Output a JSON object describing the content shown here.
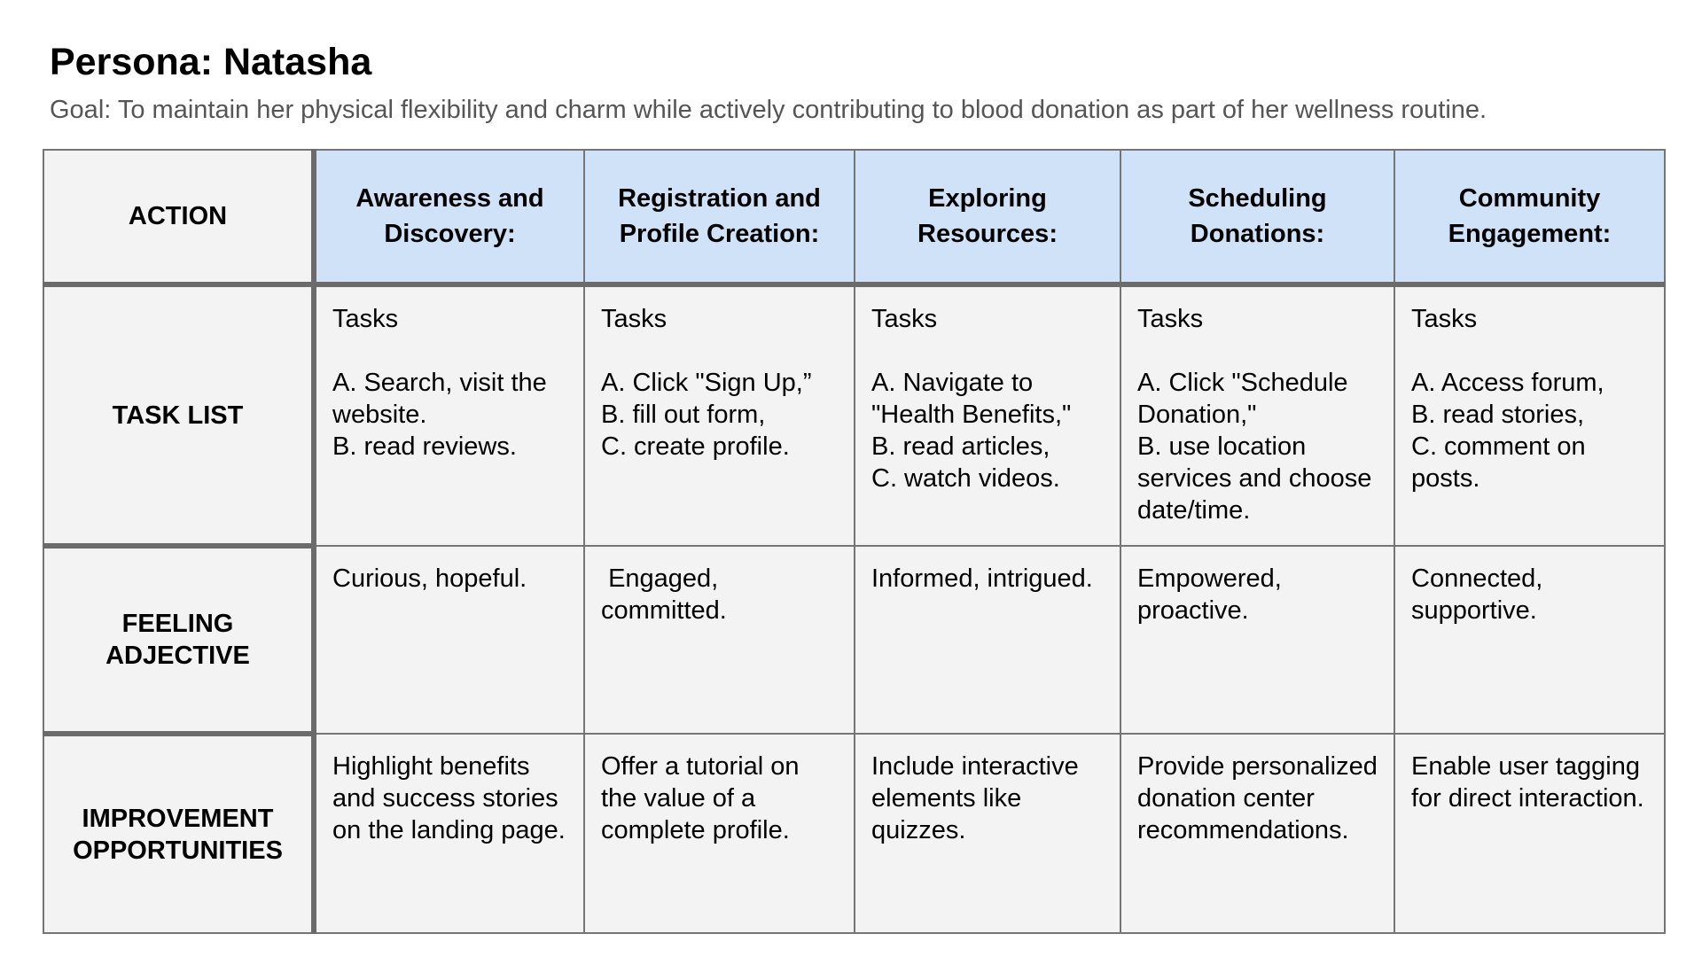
{
  "header": {
    "title": "Persona: Natasha",
    "goal": "Goal: To maintain her physical flexibility and charm while actively contributing to blood donation as part of her wellness routine."
  },
  "table": {
    "row_headers": {
      "action": "ACTION",
      "task_list": "TASK LIST",
      "feeling": "FEELING\nADJECTIVE",
      "improvement": "IMPROVEMENT\nOPPORTUNITIES"
    },
    "stages": [
      "Awareness and\nDiscovery:",
      "Registration and\nProfile Creation:",
      "Exploring\nResources:",
      "Scheduling\nDonations:",
      "Community\nEngagement:"
    ],
    "tasks": [
      "Tasks\n\nA. Search, visit the website.\nB. read reviews.",
      "Tasks\n\nA. Click \"Sign Up,”\nB.  fill out form,\nC. create profile.",
      "Tasks\n\nA. Navigate to \"Health Benefits,\"\nB. read articles,\nC. watch videos.",
      "Tasks\n\nA. Click \"Schedule Donation,\"\nB. use location services and choose date/time.",
      "Tasks\n\nA. Access forum,\nB. read stories,\nC. comment on posts."
    ],
    "feelings": [
      "Curious, hopeful.",
      " Engaged, committed.",
      "Informed, intrigued.",
      "Empowered, proactive.",
      "Connected, supportive."
    ],
    "improvements": [
      "Highlight benefits and success stories on the landing page.",
      "Offer a tutorial on the value of a complete profile.",
      "Include interactive elements like quizzes.",
      "Provide personalized donation center recommendations.",
      "Enable user tagging for direct interaction."
    ]
  },
  "colors": {
    "header_fill": "#cfe2f8",
    "cell_fill": "#f3f3f3",
    "border": "#757575",
    "goal_text": "#555555"
  }
}
